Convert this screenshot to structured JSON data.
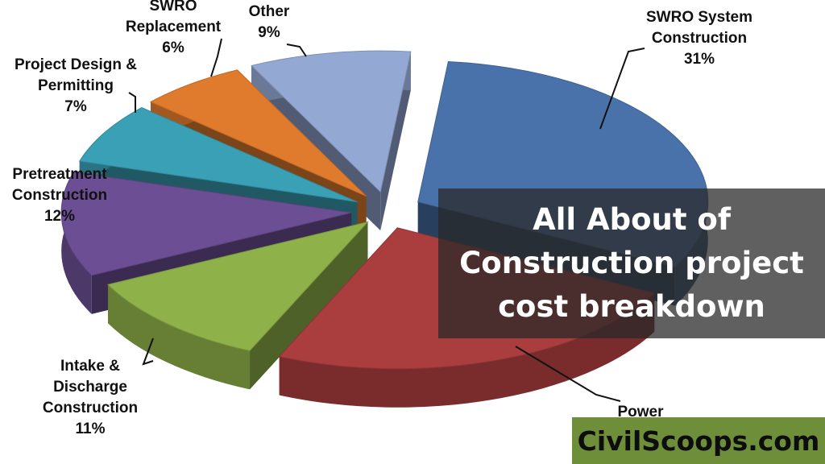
{
  "chart_data": {
    "type": "pie",
    "title": "",
    "slices": [
      {
        "label": [
          "SWRO System",
          "Construction"
        ],
        "percent_label": "31%",
        "value": 31,
        "color": "#4a72aa"
      },
      {
        "label": [
          "Power"
        ],
        "percent_label": "",
        "value": 24,
        "color": "#aa3d3d"
      },
      {
        "label": [
          "Intake &",
          "Discharge",
          "Construction"
        ],
        "percent_label": "11%",
        "value": 11,
        "color": "#8eb14a"
      },
      {
        "label": [
          "Pretreatment",
          "Construction"
        ],
        "percent_label": "12%",
        "value": 12,
        "color": "#6b4e93"
      },
      {
        "label": [
          "Project Design &",
          "Permitting"
        ],
        "percent_label": "7%",
        "value": 7,
        "color": "#3aa0b6"
      },
      {
        "label": [
          "SWRO",
          "Replacement"
        ],
        "percent_label": "6%",
        "value": 6,
        "color": "#e07b2e"
      },
      {
        "label": [
          "Other"
        ],
        "percent_label": "9%",
        "value": 9,
        "color": "#93a8d3"
      }
    ],
    "style": "3d-exploded"
  },
  "overlay": {
    "lines": [
      "All About of",
      "Construction project",
      "cost breakdown"
    ]
  },
  "brand": {
    "text": "CivilScoops.com"
  }
}
